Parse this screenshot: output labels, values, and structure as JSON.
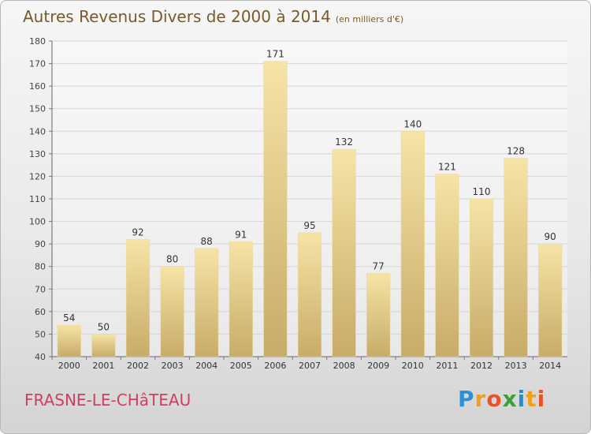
{
  "title": "Autres Revenus Divers de 2000 à 2014",
  "title_unit": "(en milliers d'€)",
  "town": "FRASNE-LE-CHâTEAU",
  "logo": {
    "letters": [
      "P",
      "r",
      "o",
      "x",
      "i",
      "t",
      "i"
    ],
    "colors": [
      "#2d8fd5",
      "#f0a020",
      "#e8542a",
      "#3aa03a",
      "#1f8fd0",
      "#f0a020",
      "#e8542a"
    ]
  },
  "colors": {
    "bar_light": "#f6e4a6",
    "bar_dark": "#c8ab68",
    "title": "#7a5a2a",
    "town": "#d23f5e"
  },
  "chart_data": {
    "type": "bar",
    "categories": [
      "2000",
      "2001",
      "2002",
      "2003",
      "2004",
      "2005",
      "2006",
      "2007",
      "2008",
      "2009",
      "2010",
      "2011",
      "2012",
      "2013",
      "2014"
    ],
    "values": [
      54,
      50,
      92,
      80,
      88,
      91,
      171,
      95,
      132,
      77,
      140,
      121,
      110,
      128,
      90
    ],
    "title": "Autres Revenus Divers de 2000 à 2014",
    "xlabel": "",
    "ylabel": "",
    "ylim": [
      40,
      180
    ],
    "yticks": [
      40,
      50,
      60,
      70,
      80,
      90,
      100,
      110,
      120,
      130,
      140,
      150,
      160,
      170,
      180
    ],
    "grid": true,
    "data_labels": true
  }
}
